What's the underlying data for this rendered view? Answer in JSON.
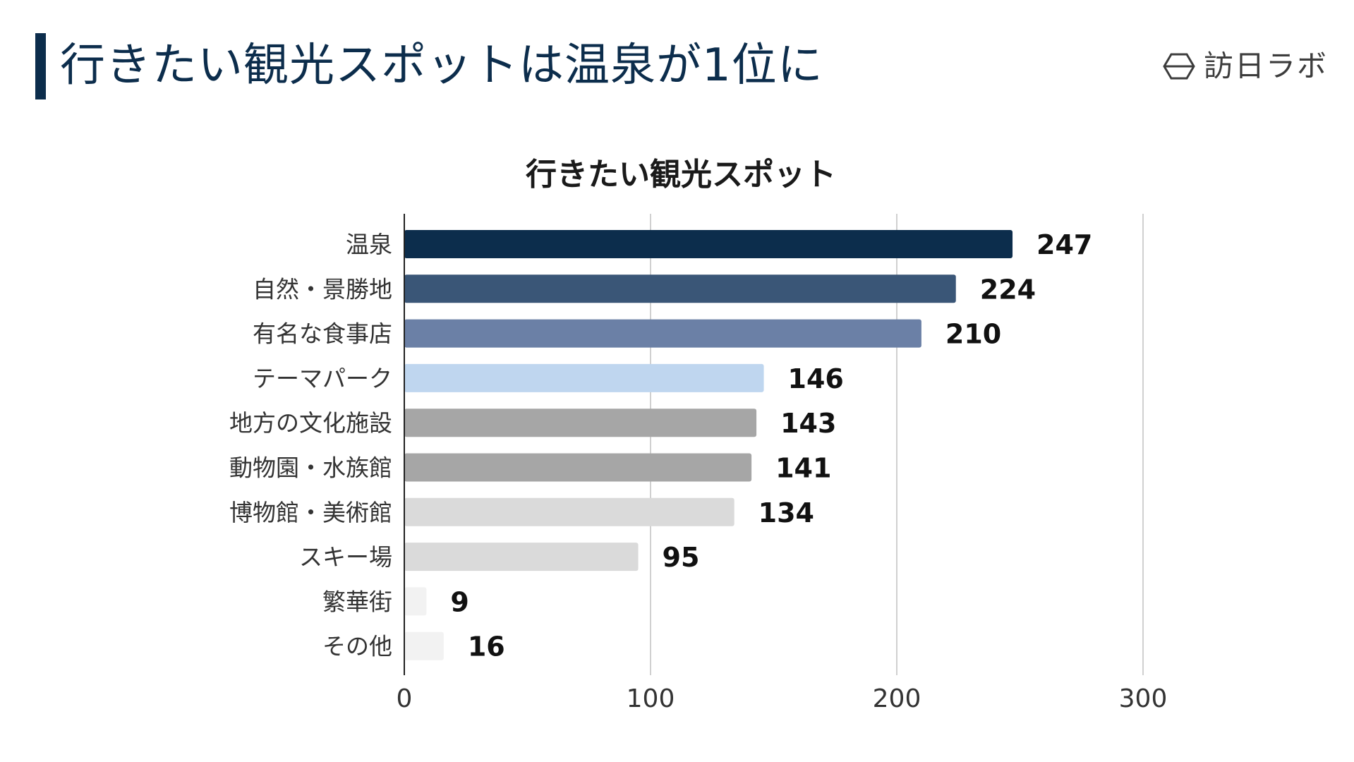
{
  "header": {
    "title": "行きたい観光スポットは温泉が1位に",
    "brand_name": "訪日ラボ",
    "brand_icon": "brand-logo-icon"
  },
  "chart_data": {
    "type": "bar",
    "orientation": "horizontal",
    "title": "行きたい観光スポット",
    "categories": [
      "温泉",
      "自然・景勝地",
      "有名な食事店",
      "テーマパーク",
      "地方の文化施設",
      "動物園・水族館",
      "博物館・美術館",
      "スキー場",
      "繁華街",
      "その他"
    ],
    "values": [
      247,
      224,
      210,
      146,
      143,
      141,
      134,
      95,
      9,
      16
    ],
    "colors": [
      "#0c2d4c",
      "#3a5677",
      "#6b80a6",
      "#bfd6ef",
      "#a6a6a6",
      "#a6a6a6",
      "#dadada",
      "#dadada",
      "#f2f2f2",
      "#f2f2f2"
    ],
    "data_labels": [
      "247",
      "224",
      "210",
      "146",
      "143",
      "141",
      "134",
      "95",
      "9",
      "16"
    ],
    "xlim": [
      0,
      300
    ],
    "x_ticks": [
      0,
      100,
      200,
      300
    ],
    "x_tick_labels": [
      "0",
      "100",
      "200",
      "300"
    ],
    "grid": true,
    "xlabel": "",
    "ylabel": ""
  }
}
